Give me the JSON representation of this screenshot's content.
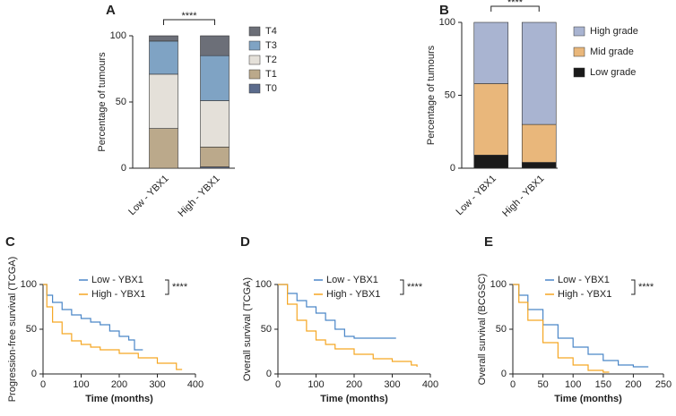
{
  "chart_data": [
    {
      "type": "stacked-bar",
      "label": "A",
      "ylabel": "Percentage of tumours",
      "annotation": "****",
      "categories": [
        "Low - YBX1",
        "High - YBX1"
      ],
      "series": [
        {
          "name": "T0",
          "color": "#5b6b8c",
          "values": [
            0,
            1
          ]
        },
        {
          "name": "T1",
          "color": "#bba98b",
          "values": [
            30,
            15
          ]
        },
        {
          "name": "T2",
          "color": "#e4e0d9",
          "values": [
            41,
            35
          ]
        },
        {
          "name": "T3",
          "color": "#7fa3c4",
          "values": [
            25,
            34
          ]
        },
        {
          "name": "T4",
          "color": "#6c6f78",
          "values": [
            4,
            15
          ]
        }
      ],
      "ylim": [
        0,
        100
      ],
      "yticks": [
        0,
        50,
        100
      ],
      "legend": "right"
    },
    {
      "type": "stacked-bar",
      "label": "B",
      "ylabel": "Percentage of tumours",
      "annotation": "****",
      "categories": [
        "Low - YBX1",
        "High - YBX1"
      ],
      "series": [
        {
          "name": "Low grade",
          "color": "#1a1a1a",
          "values": [
            9,
            4
          ]
        },
        {
          "name": "Mid grade",
          "color": "#e9b77b",
          "values": [
            49,
            26
          ]
        },
        {
          "name": "High grade",
          "color": "#a9b4d1",
          "values": [
            42,
            70
          ]
        }
      ],
      "ylim": [
        0,
        100
      ],
      "yticks": [
        0,
        50,
        100
      ],
      "legend": "right"
    },
    {
      "type": "line",
      "label": "C",
      "ylabel": "Progression-free survival (TCGA)",
      "xlabel": "Time (months)",
      "annotation": "****",
      "series": [
        {
          "name": "Low - YBX1",
          "color": "#4a86c8",
          "x": [
            0,
            10,
            25,
            50,
            75,
            100,
            125,
            150,
            175,
            200,
            225,
            240,
            262
          ],
          "values": [
            100,
            88,
            80,
            72,
            66,
            62,
            58,
            55,
            48,
            42,
            38,
            27,
            27
          ]
        },
        {
          "name": "High - YBX1",
          "color": "#f5a623",
          "x": [
            0,
            10,
            25,
            50,
            75,
            100,
            125,
            150,
            200,
            250,
            300,
            350,
            365
          ],
          "values": [
            100,
            75,
            58,
            45,
            37,
            33,
            30,
            27,
            23,
            18,
            12,
            5,
            5
          ]
        }
      ],
      "xlim": [
        0,
        400
      ],
      "xticks": [
        0,
        100,
        200,
        300,
        400
      ],
      "ylim": [
        0,
        100
      ],
      "yticks": [
        0,
        50,
        100
      ],
      "legend": "top-right"
    },
    {
      "type": "line",
      "label": "D",
      "ylabel": "Overall survival (TCGA)",
      "xlabel": "Time (months)",
      "annotation": "****",
      "series": [
        {
          "name": "Low - YBX1",
          "color": "#4a86c8",
          "x": [
            0,
            25,
            50,
            75,
            100,
            125,
            150,
            175,
            200,
            250,
            310
          ],
          "values": [
            100,
            90,
            82,
            75,
            68,
            60,
            50,
            42,
            40,
            40,
            40
          ]
        },
        {
          "name": "High - YBX1",
          "color": "#f5a623",
          "x": [
            0,
            25,
            50,
            75,
            100,
            125,
            150,
            200,
            250,
            300,
            350,
            365
          ],
          "values": [
            100,
            78,
            60,
            48,
            38,
            33,
            28,
            22,
            17,
            14,
            10,
            8
          ]
        }
      ],
      "xlim": [
        0,
        400
      ],
      "xticks": [
        0,
        100,
        200,
        300,
        400
      ],
      "ylim": [
        0,
        100
      ],
      "yticks": [
        0,
        50,
        100
      ],
      "legend": "top-right"
    },
    {
      "type": "line",
      "label": "E",
      "ylabel": "Overall survival (BCGSC)",
      "xlabel": "Time (months)",
      "annotation": "****",
      "series": [
        {
          "name": "Low - YBX1",
          "color": "#4a86c8",
          "x": [
            0,
            10,
            25,
            50,
            75,
            100,
            125,
            150,
            175,
            200,
            225
          ],
          "values": [
            100,
            88,
            72,
            55,
            40,
            30,
            22,
            15,
            10,
            8,
            8
          ]
        },
        {
          "name": "High - YBX1",
          "color": "#f5a623",
          "x": [
            0,
            10,
            25,
            50,
            75,
            100,
            125,
            150,
            160
          ],
          "values": [
            100,
            80,
            60,
            35,
            18,
            10,
            4,
            2,
            2
          ]
        }
      ],
      "xlim": [
        0,
        250
      ],
      "xticks": [
        0,
        50,
        100,
        150,
        200,
        250
      ],
      "ylim": [
        0,
        100
      ],
      "yticks": [
        0,
        50,
        100
      ],
      "legend": "top-right"
    }
  ]
}
